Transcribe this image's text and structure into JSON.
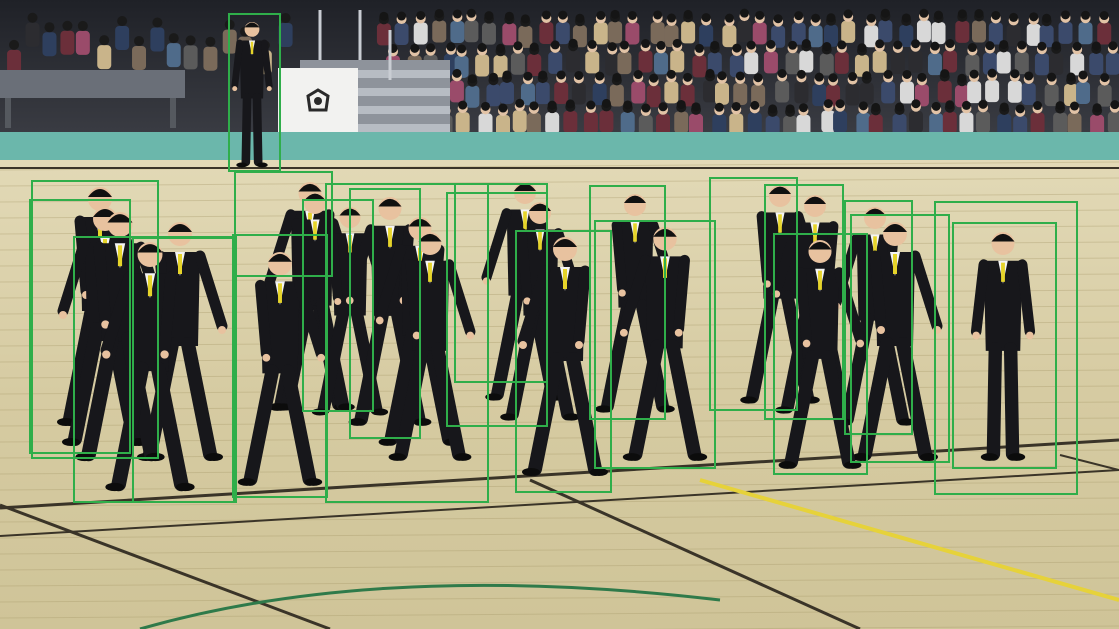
{
  "image": {
    "description_free": true
  },
  "annotations": {
    "box_color": "#2fae4a",
    "label_count": 0
  },
  "palette": {
    "floor_light": "#d8cfa8",
    "floor_dark": "#c7bd92",
    "court_teal": "#5fb3a8",
    "suit": "#17171b",
    "tie": "#e6d42a",
    "skin": "#e8c29f",
    "crowd_bg": "#2a2c33",
    "yellow_line": "#e6d23a",
    "dark_line": "#3a3428"
  }
}
